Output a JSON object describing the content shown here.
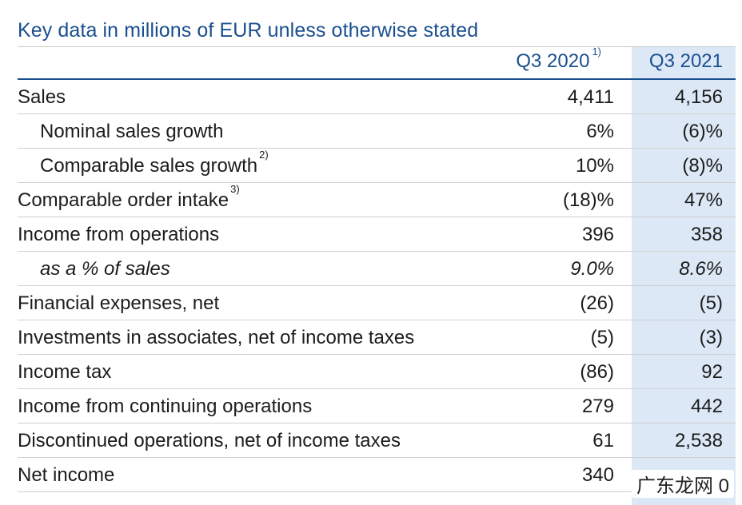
{
  "title": "Key data in millions of EUR unless otherwise stated",
  "columns": {
    "col1": "Q3 2020",
    "col1_footnote": "1)",
    "col2": "Q3 2021"
  },
  "rows": [
    {
      "label": "Sales",
      "footnote": "",
      "q3_2020": "4,411",
      "q3_2021": "4,156"
    },
    {
      "label": "Nominal sales growth",
      "footnote": "",
      "q3_2020": "6%",
      "q3_2021": "(6)%"
    },
    {
      "label": "Comparable sales growth",
      "footnote": "2)",
      "q3_2020": "10%",
      "q3_2021": "(8)%"
    },
    {
      "label": "Comparable order intake",
      "footnote": "3)",
      "q3_2020": "(18)%",
      "q3_2021": "47%"
    },
    {
      "label": "Income from operations",
      "footnote": "",
      "q3_2020": "396",
      "q3_2021": "358"
    },
    {
      "label": "as a % of sales",
      "footnote": "",
      "q3_2020": "9.0%",
      "q3_2021": "8.6%"
    },
    {
      "label": "Financial expenses, net",
      "footnote": "",
      "q3_2020": "(26)",
      "q3_2021": "(5)"
    },
    {
      "label": "Investments in associates, net of income taxes",
      "footnote": "",
      "q3_2020": "(5)",
      "q3_2021": "(3)"
    },
    {
      "label": "Income tax",
      "footnote": "",
      "q3_2020": "(86)",
      "q3_2021": "92"
    },
    {
      "label": "Income from continuing operations",
      "footnote": "",
      "q3_2020": "279",
      "q3_2021": "442"
    },
    {
      "label": "Discontinued operations, net of income taxes",
      "footnote": "",
      "q3_2020": "61",
      "q3_2021": "2,538"
    },
    {
      "label": "Net income",
      "footnote": "",
      "q3_2020": "340",
      "q3_2021": ""
    }
  ],
  "watermark": "广东龙网 0"
}
